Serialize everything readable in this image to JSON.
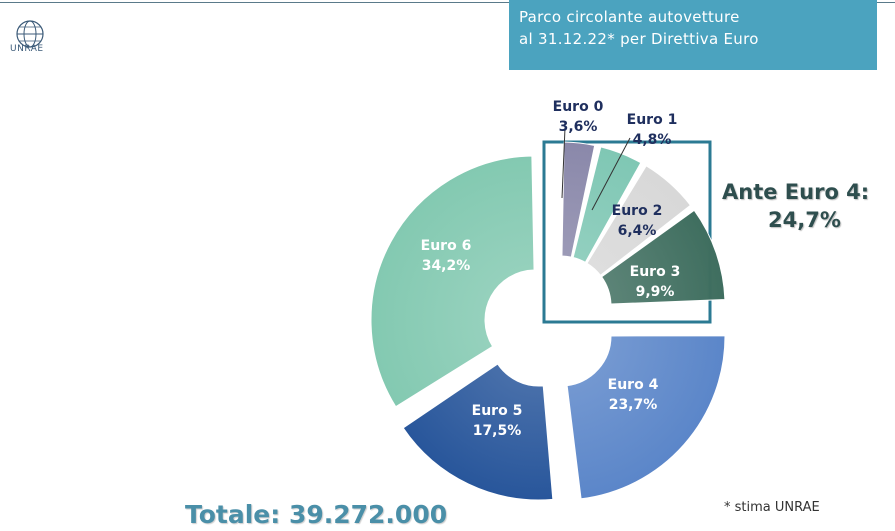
{
  "header": {
    "logo_text": "UNRAE",
    "title_line1": "Parco circolante autovetture",
    "title_line2": "al 31.12.22* per Direttiva Euro"
  },
  "callout": {
    "label": "Ante Euro 4:",
    "value": "24,7%"
  },
  "total": "Totale: 39.272.000",
  "footnote": "* stima UNRAE",
  "chart_data": {
    "type": "pie",
    "variant": "donut",
    "categories": [
      "Euro 0",
      "Euro 1",
      "Euro 2",
      "Euro 3",
      "Euro 4",
      "Euro 5",
      "Euro 6"
    ],
    "values": [
      3.6,
      4.8,
      6.4,
      9.9,
      23.7,
      17.5,
      34.2
    ],
    "value_labels": [
      "3,6%",
      "4,8%",
      "6,4%",
      "9,9%",
      "23,7%",
      "17,5%",
      "34,2%"
    ],
    "colors": [
      "#8a88aa",
      "#7fc7b4",
      "#d8d8d8",
      "#3f6e5f",
      "#5b86c9",
      "#28569b",
      "#83c9b1"
    ],
    "highlight_group": [
      "Euro 0",
      "Euro 1",
      "Euro 2",
      "Euro 3"
    ],
    "highlight_color": "#2b7a93"
  }
}
